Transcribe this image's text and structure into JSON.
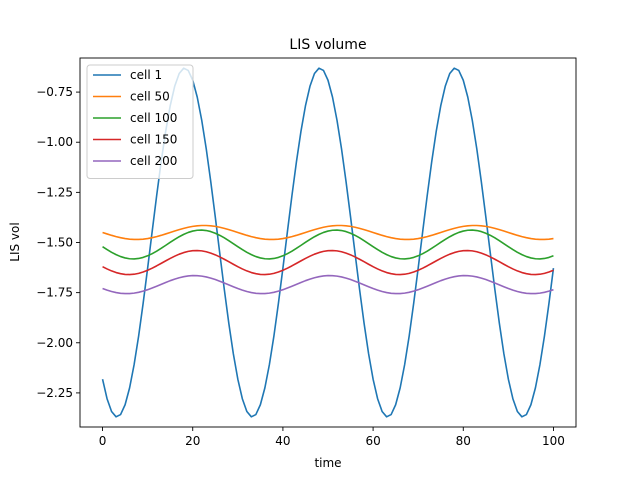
{
  "chart_data": {
    "type": "line",
    "title": "LIS volume",
    "xlabel": "time",
    "ylabel": "LIS vol",
    "xlim": [
      -5,
      105
    ],
    "ylim": [
      -2.42,
      -0.58
    ],
    "x_ticks": [
      0,
      20,
      40,
      60,
      80,
      100
    ],
    "x_tick_labels": [
      "0",
      "20",
      "40",
      "60",
      "80",
      "100"
    ],
    "y_ticks": [
      -2.25,
      -2.0,
      -1.75,
      -1.5,
      -1.25,
      -1.0,
      -0.75
    ],
    "y_tick_labels": [
      "−2.25",
      "−2.00",
      "−1.75",
      "−1.50",
      "−1.25",
      "−1.00",
      "−0.75"
    ],
    "grid": false,
    "legend_position": "top-left",
    "series": [
      {
        "name": "cell 1",
        "color": "#1f77b4",
        "offset": -1.5,
        "amplitude": 0.87,
        "period": 30,
        "phase": 0.9,
        "x_start": 0,
        "x_end": 100,
        "x_step": 1
      },
      {
        "name": "cell 50",
        "color": "#ff7f0e",
        "offset": -1.45,
        "amplitude": 0.035,
        "period": 30,
        "phase": 0.0,
        "x_start": 0,
        "x_end": 100,
        "x_step": 1
      },
      {
        "name": "cell 100",
        "color": "#2ca02c",
        "offset": -1.51,
        "amplitude": 0.072,
        "period": 30,
        "phase": 0.15,
        "x_start": 0,
        "x_end": 100,
        "x_step": 1
      },
      {
        "name": "cell 150",
        "color": "#d62728",
        "offset": -1.6,
        "amplitude": 0.06,
        "period": 30,
        "phase": 0.35,
        "x_start": 0,
        "x_end": 100,
        "x_step": 1
      },
      {
        "name": "cell 200",
        "color": "#9467bd",
        "offset": -1.71,
        "amplitude": 0.045,
        "period": 30,
        "phase": 0.45,
        "x_start": 0,
        "x_end": 100,
        "x_step": 1
      }
    ]
  }
}
